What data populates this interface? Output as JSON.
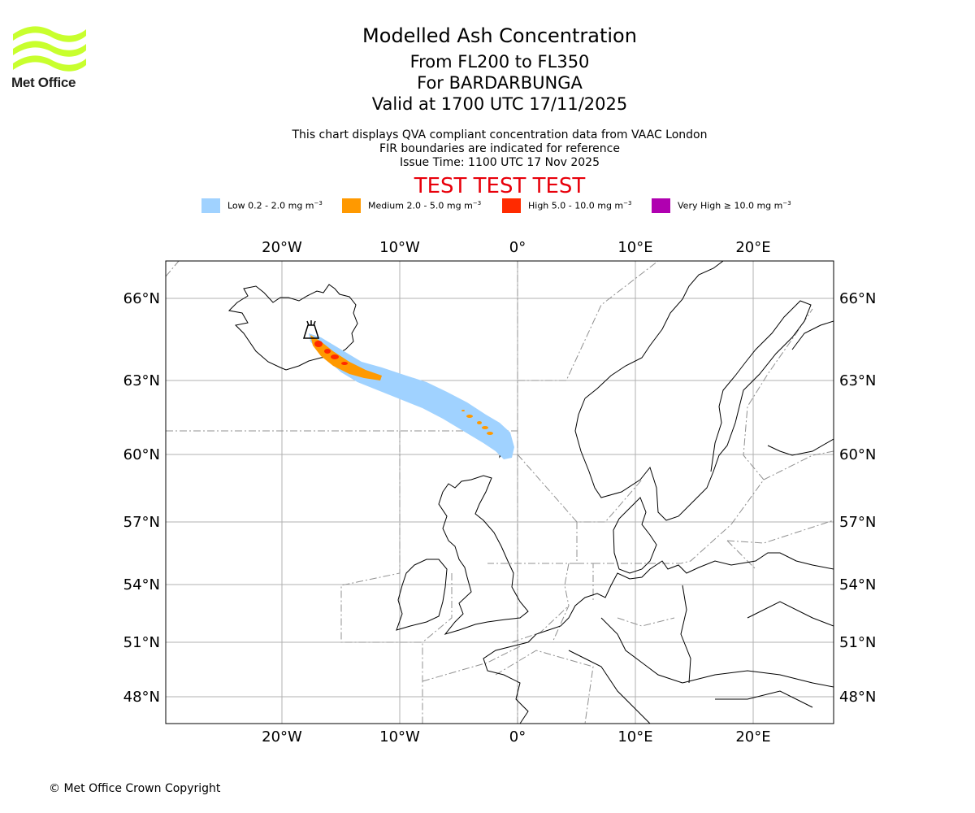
{
  "logo": {
    "text": "Met Office",
    "color": "#c8ff2e"
  },
  "header": {
    "title": "Modelled Ash Concentration",
    "levels": "From FL200 to FL350",
    "volcano": "For BARDARBUNGA",
    "valid": "Valid at 1700 UTC 17/11/2025",
    "desc1": "This chart displays QVA compliant concentration data from VAAC London",
    "desc2": "FIR boundaries are indicated for reference",
    "issue": "Issue Time: 1100 UTC 17 Nov 2025",
    "test": "TEST TEST TEST"
  },
  "legend": [
    {
      "name": "Low",
      "label_text": "Low 0.2 - 2.0 mg m",
      "sup": "−3",
      "color": "#a0d2ff"
    },
    {
      "name": "Medium",
      "label_text": "Medium 2.0 - 5.0 mg m",
      "sup": "−3",
      "color": "#ff9900"
    },
    {
      "name": "High",
      "label_text": "High 5.0 - 10.0 mg m",
      "sup": "−3",
      "color": "#ff2a00"
    },
    {
      "name": "Very High",
      "label_text": "Very High  ≥  10.0 mg m",
      "sup": "−3",
      "color": "#b000b0"
    }
  ],
  "map": {
    "lon_ticks": [
      "20°W",
      "10°W",
      "0°",
      "10°E",
      "20°E"
    ],
    "lat_ticks": [
      "66°N",
      "63°N",
      "60°N",
      "57°N",
      "54°N",
      "51°N",
      "48°N"
    ]
  },
  "footer": {
    "copyright": "© Met Office Crown Copyright"
  }
}
